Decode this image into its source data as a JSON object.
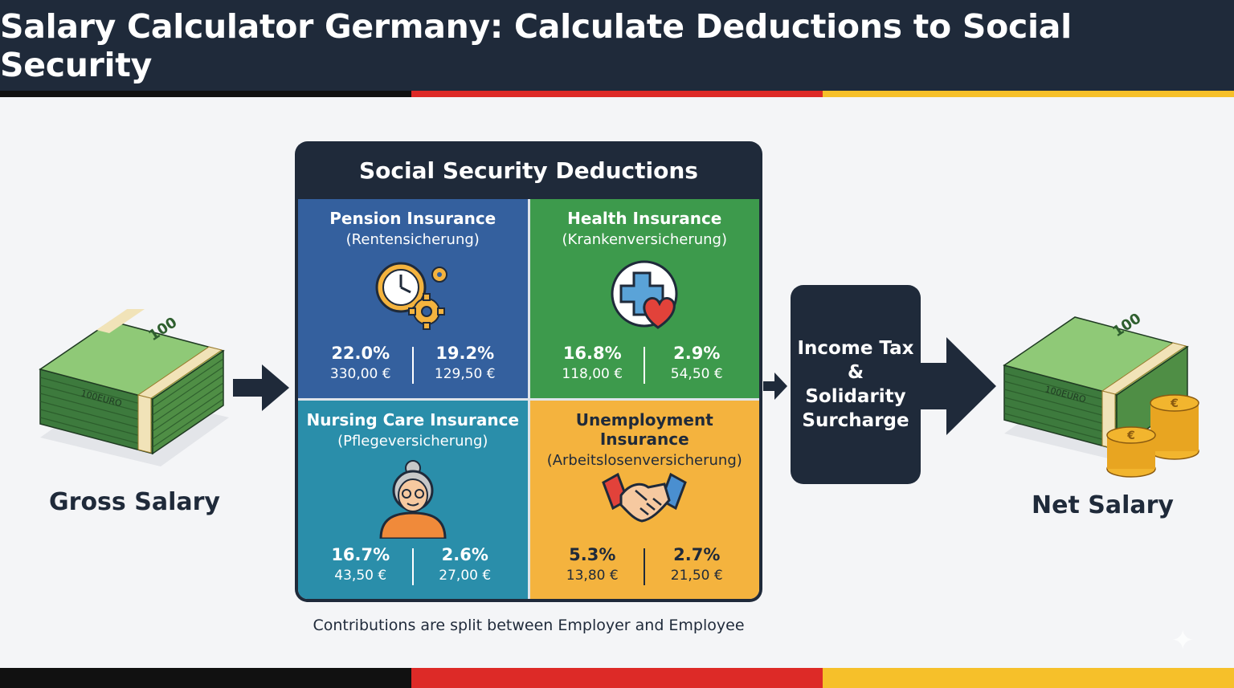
{
  "title": "Salary Calculator Germany: Calculate Deductions to Social Security",
  "flag_colors": [
    "#111111",
    "#dd2a27",
    "#f6c02a"
  ],
  "gross": {
    "label": "Gross Salary",
    "banknote_label": "100EURO",
    "banknote_value": "100"
  },
  "net": {
    "label": "Net Salary",
    "banknote_label": "100EURO",
    "banknote_value": "100",
    "coin_symbol": "€"
  },
  "panel": {
    "title": "Social Security Deductions",
    "cells": [
      {
        "name": "Pension Insurance",
        "sub": "(Rentensicherung)",
        "icon": "clock-gears-icon",
        "left_pct": "22.0%",
        "left_eur": "330,00 €",
        "right_pct": "19.2%",
        "right_eur": "129,50 €"
      },
      {
        "name": "Health Insurance",
        "sub": "(Krankenversicherung)",
        "icon": "medical-cross-heart-icon",
        "left_pct": "16.8%",
        "left_eur": "118,00 €",
        "right_pct": "2.9%",
        "right_eur": "54,50 €"
      },
      {
        "name": "Nursing Care Insurance",
        "sub": "(Pflegeversicherung)",
        "icon": "elderly-person-icon",
        "left_pct": "16.7%",
        "left_eur": "43,50 €",
        "right_pct": "2.6%",
        "right_eur": "27,00 €"
      },
      {
        "name": "Unemployment Insurance",
        "sub": "(Arbeitslosenversicherung)",
        "icon": "handshake-icon",
        "left_pct": "5.3%",
        "left_eur": "13,80 €",
        "right_pct": "2.7%",
        "right_eur": "21,50 €"
      }
    ]
  },
  "tax_box": {
    "line1": "Income Tax",
    "line2": "&",
    "line3": "Solidarity",
    "line4": "Surcharge"
  },
  "footnote": "Contributions are split between Employer and Employee",
  "colors": {
    "navy": "#1f2a3a",
    "pension": "#34609e",
    "health": "#3d9a4c",
    "nursing": "#2a8eaa",
    "unemployment": "#f4b33e"
  }
}
